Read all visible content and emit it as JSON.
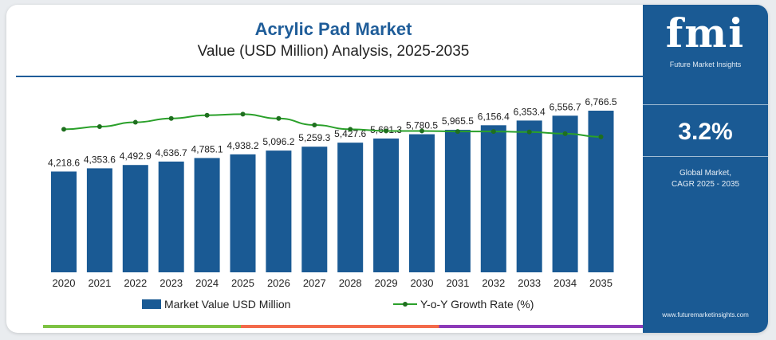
{
  "header": {
    "title": "Acrylic Pad Market",
    "subtitle": "Value (USD Million) Analysis, 2025-2035"
  },
  "colors": {
    "bar": "#1a5a94",
    "line": "#2aa02a",
    "title": "#1f5d99",
    "panel": "#1a5a94"
  },
  "legend": {
    "bar_label": "Market Value USD Million",
    "line_label": "Y-o-Y Growth Rate (%)"
  },
  "side_panel": {
    "logo_text": "fmi",
    "logo_subtitle": "Future Market Insights",
    "cagr_value": "3.2%",
    "cagr_label_line1": "Global Market,",
    "cagr_label_line2": "CAGR 2025 - 2035",
    "website": "www.futuremarketinsights.com"
  },
  "chart_data": {
    "type": "bar",
    "categories": [
      "2020",
      "2021",
      "2022",
      "2023",
      "2024",
      "2025",
      "2026",
      "2027",
      "2028",
      "2029",
      "2030",
      "2031",
      "2032",
      "2033",
      "2034",
      "2035"
    ],
    "series": [
      {
        "name": "Market Value USD Million",
        "type": "bar",
        "values": [
          4218.6,
          4353.6,
          4492.9,
          4636.7,
          4785.1,
          4938.2,
          5096.2,
          5259.3,
          5427.6,
          5601.3,
          5780.5,
          5965.5,
          6156.4,
          6353.4,
          6556.7,
          6766.5
        ],
        "labels": [
          "4,218.6",
          "4,353.6",
          "4,492.9",
          "4,636.7",
          "4,785.1",
          "4,938.2",
          "5,096.2",
          "5,259.3",
          "5,427.6",
          "5,601.3",
          "5,780.5",
          "5,965.5",
          "6,156.4",
          "6,353.4",
          "6,556.7",
          "6,766.5"
        ]
      },
      {
        "name": "Y-o-Y Growth Rate (%)",
        "type": "line",
        "values": [
          3.1,
          3.15,
          3.23,
          3.3,
          3.36,
          3.38,
          3.3,
          3.18,
          3.1,
          3.07,
          3.07,
          3.06,
          3.06,
          3.05,
          3.02,
          2.96
        ]
      }
    ],
    "ylim": [
      0,
      6800
    ],
    "grid": false,
    "legend_position": "bottom"
  }
}
